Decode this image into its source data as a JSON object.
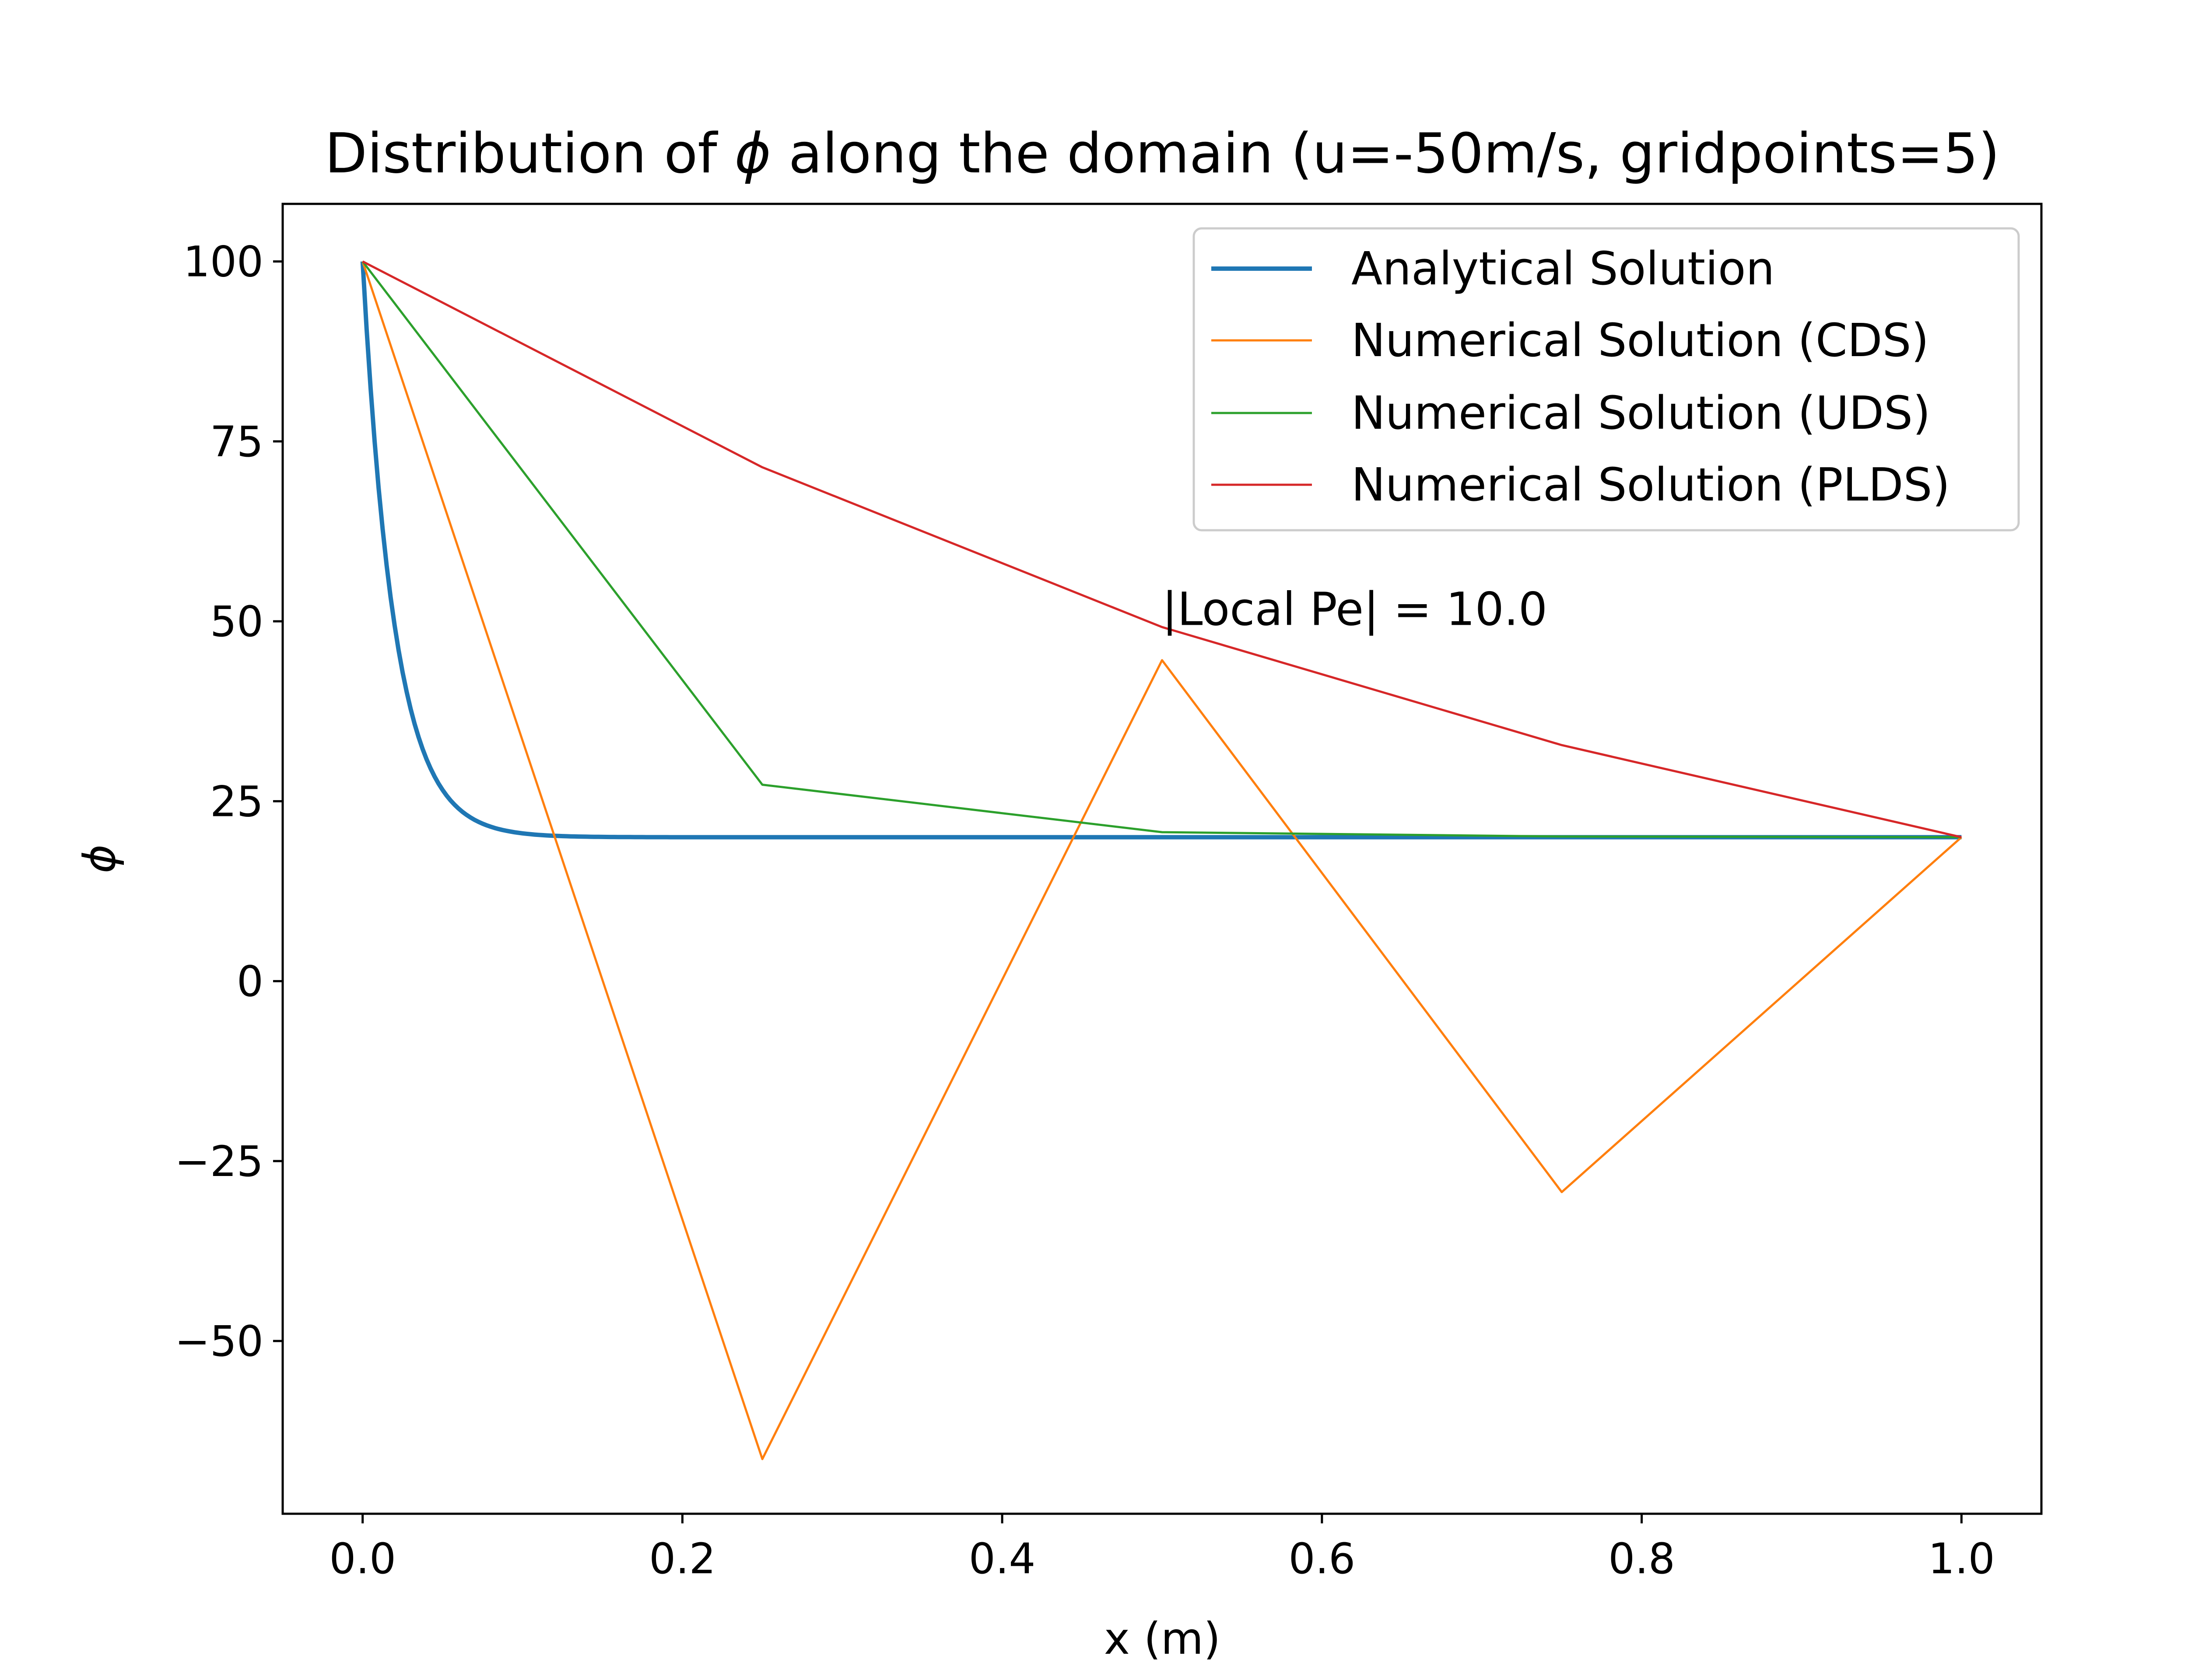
{
  "chart_data": {
    "type": "line",
    "title_parts": [
      "Distribution of ",
      "ϕ",
      " along the domain (u=-50m/s, gridpoints=5)"
    ],
    "xlabel": "x (m)",
    "ylabel": "ϕ",
    "xlim": [
      -0.05,
      1.05
    ],
    "ylim": [
      -74,
      108
    ],
    "xticks": [
      0.0,
      0.2,
      0.4,
      0.6,
      0.8,
      1.0
    ],
    "xtick_labels": [
      "0.0",
      "0.2",
      "0.4",
      "0.6",
      "0.8",
      "1.0"
    ],
    "yticks": [
      -50,
      -25,
      0,
      25,
      50,
      75,
      100
    ],
    "ytick_labels": [
      "−50",
      "−25",
      "0",
      "25",
      "50",
      "75",
      "100"
    ],
    "grid": false,
    "legend_position": "top-right",
    "annotation": {
      "text": "|Local Pe| = 10.0",
      "x": 0.5,
      "y": 49.5
    },
    "series": [
      {
        "name": "Analytical Solution",
        "color": "#1f77b4",
        "line_width": "thick",
        "function": {
          "kind": "exponential_decay",
          "phi_left": 100,
          "phi_right": 20,
          "peclet": 50
        },
        "x": [],
        "y": []
      },
      {
        "name": "Numerical Solution (CDS)",
        "color": "#ff7f0e",
        "line_width": "thin",
        "x": [
          0.0,
          0.25,
          0.5,
          0.75,
          1.0
        ],
        "y": [
          100,
          -66.4,
          44.6,
          -29.3,
          20
        ]
      },
      {
        "name": "Numerical Solution (UDS)",
        "color": "#2ca02c",
        "line_width": "thin",
        "x": [
          0.0,
          0.25,
          0.5,
          0.75,
          1.0
        ],
        "y": [
          100,
          27.3,
          20.7,
          20.1,
          20
        ]
      },
      {
        "name": "Numerical Solution (PLDS)",
        "color": "#d62728",
        "line_width": "thin",
        "x": [
          0.0,
          0.25,
          0.5,
          0.75,
          1.0
        ],
        "y": [
          100,
          71.4,
          49.2,
          32.8,
          20
        ]
      }
    ]
  }
}
